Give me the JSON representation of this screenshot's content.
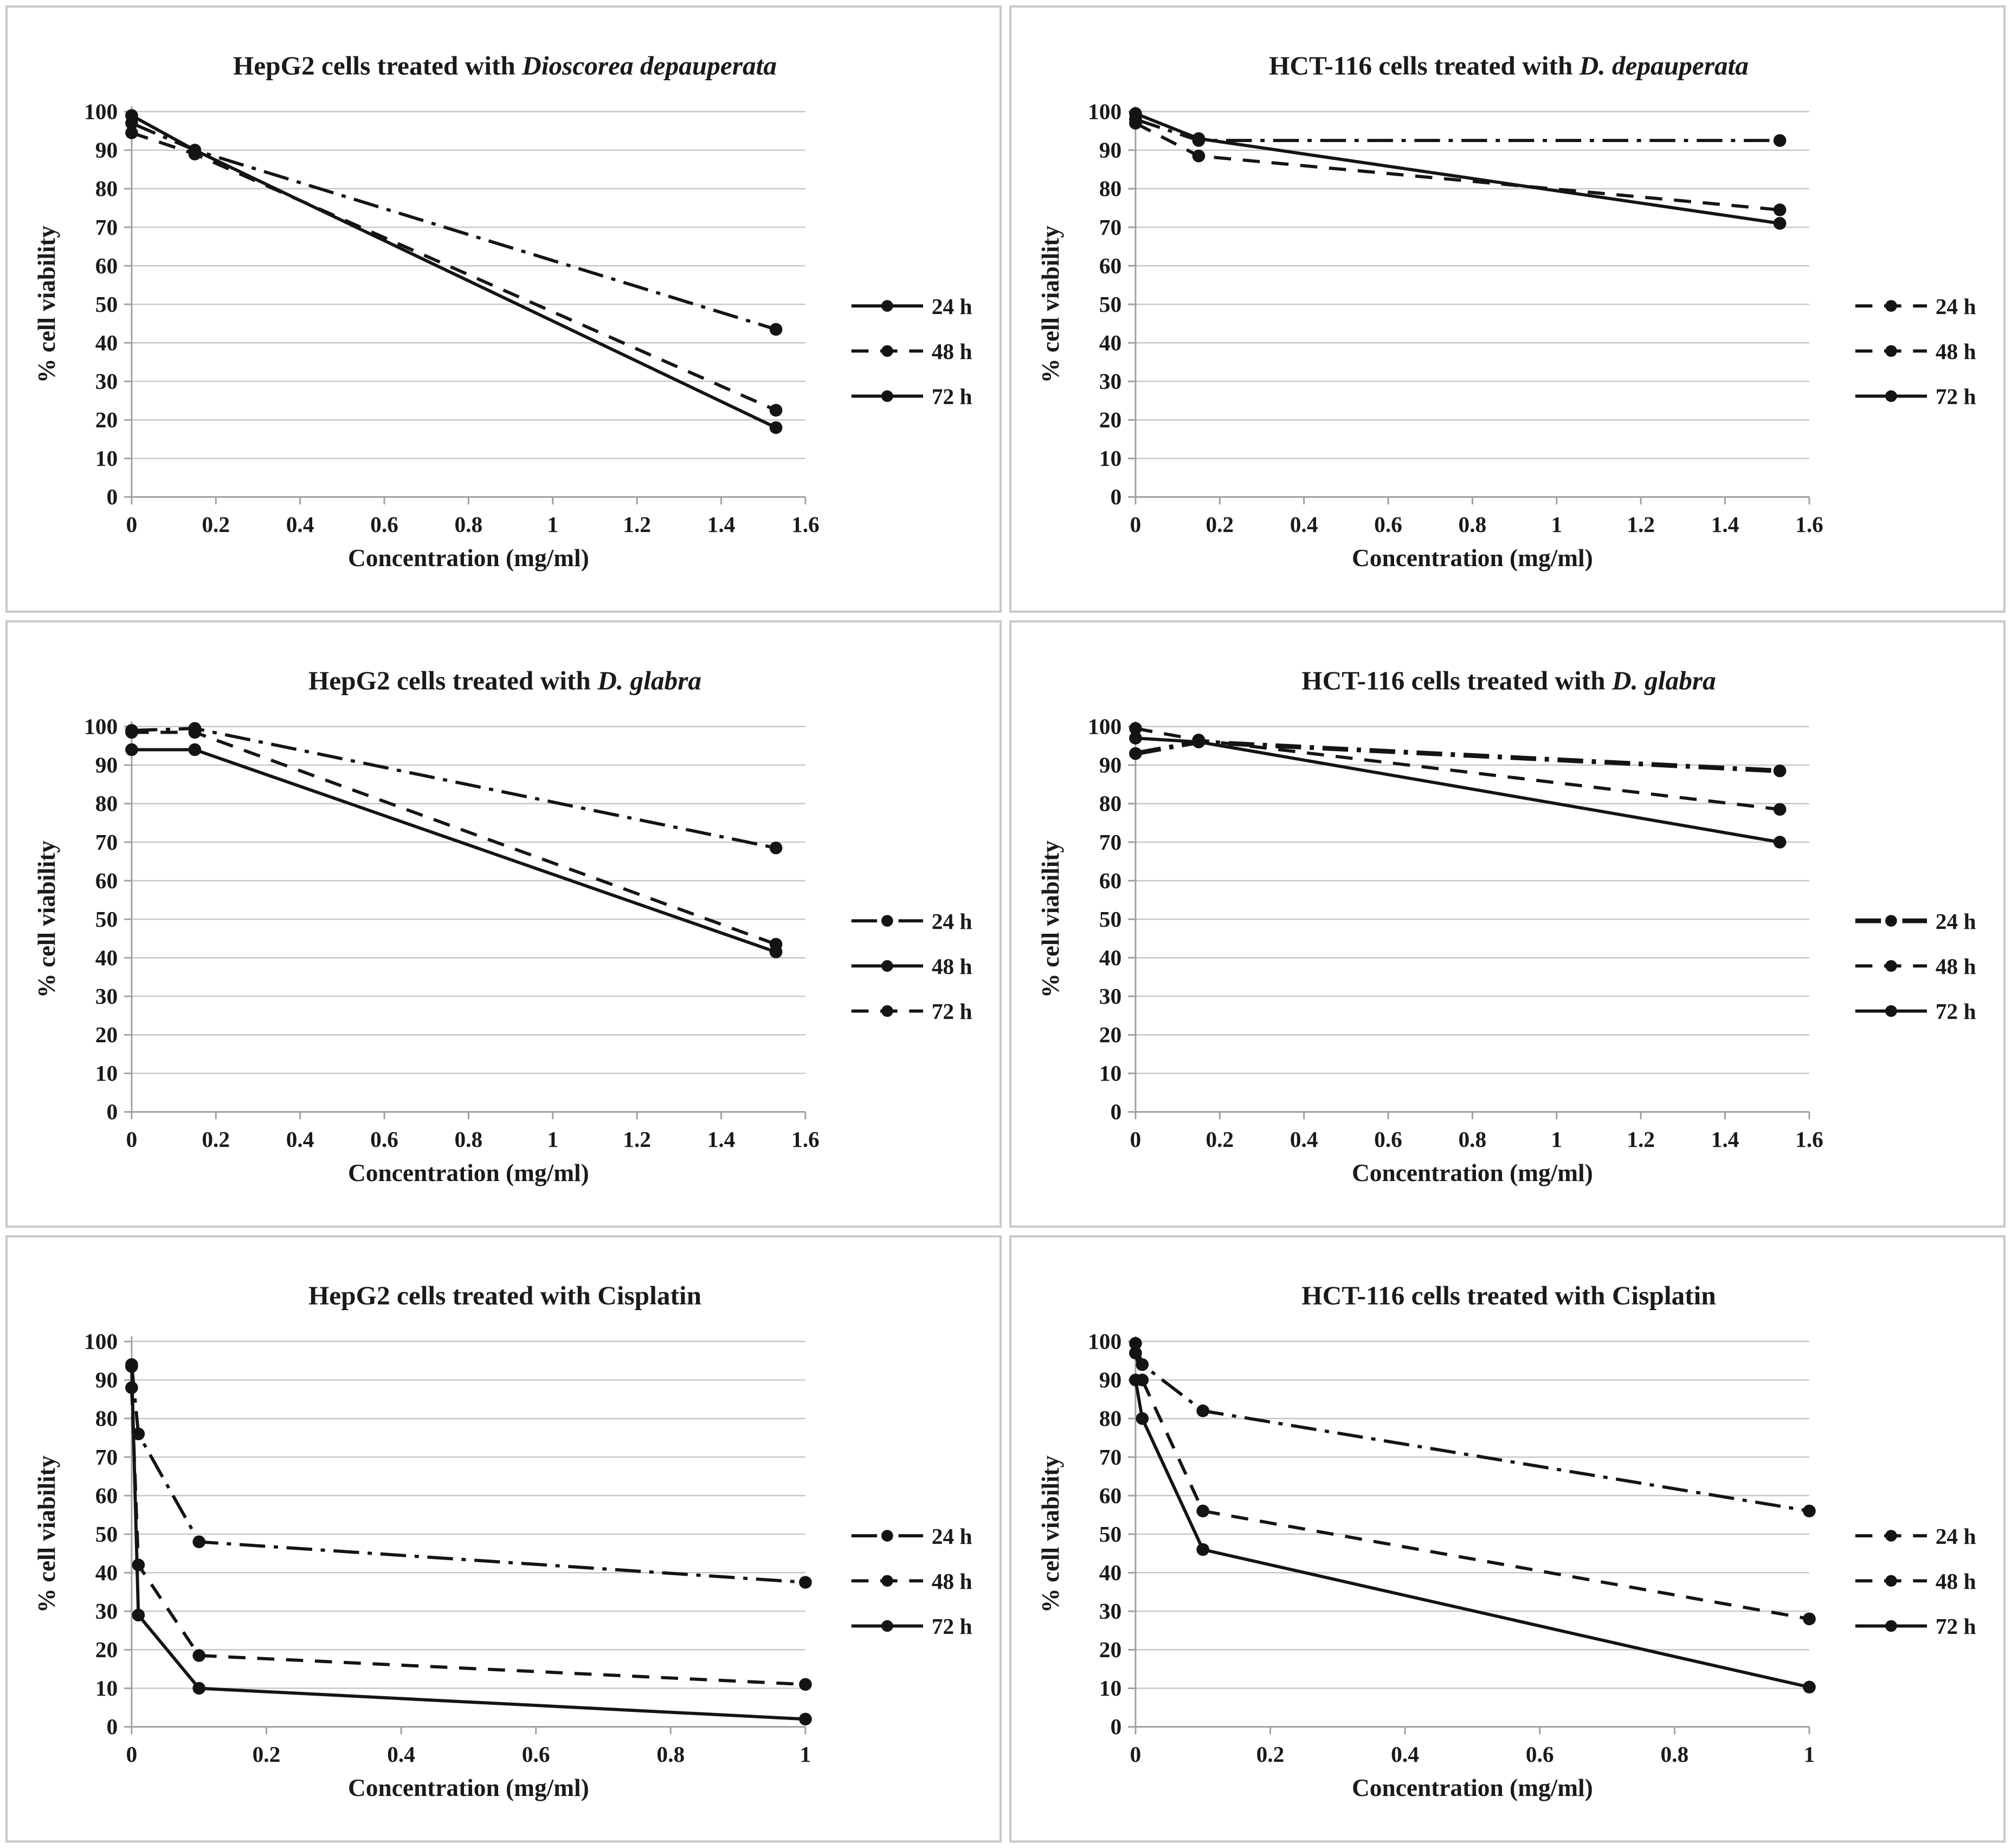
{
  "style": {
    "line_color": "#141414",
    "grid_color": "#c6c6c6",
    "axis_color": "#a0a0a0",
    "text_color": "#1a1a1a",
    "panel_border_color": "#c9c9c9",
    "background_color": "#ffffff"
  },
  "chart_data": [
    {
      "type": "line",
      "title_parts": [
        {
          "text": "HepG2 cells treated with ",
          "italic": false
        },
        {
          "text": "Dioscorea depauperata",
          "italic": true
        }
      ],
      "xlabel": "Concentration (mg/ml)",
      "ylabel": "% cell viability",
      "xlim": [
        0,
        1.6
      ],
      "ylim": [
        0,
        100
      ],
      "xticks": [
        0,
        0.2,
        0.4,
        0.6,
        0.8,
        1,
        1.2,
        1.4,
        1.6
      ],
      "yticks": [
        0,
        10,
        20,
        30,
        40,
        50,
        60,
        70,
        80,
        90,
        100
      ],
      "grid": "horizontal",
      "legend_position": "right",
      "series": [
        {
          "name": "24 h",
          "style": "dashdot",
          "legend_style": "solid",
          "marker": "circle",
          "x": [
            0,
            0.15,
            1.53
          ],
          "y": [
            97,
            90,
            43.5
          ]
        },
        {
          "name": "48 h",
          "style": "dashed",
          "legend_style": "dashed",
          "marker": "circle",
          "x": [
            0,
            0.15,
            1.53
          ],
          "y": [
            94.5,
            89,
            22.5
          ]
        },
        {
          "name": "72 h",
          "style": "solid",
          "legend_style": "solid",
          "marker": "circle",
          "x": [
            0,
            0.15,
            1.53
          ],
          "y": [
            99,
            90,
            18
          ]
        }
      ]
    },
    {
      "type": "line",
      "title_parts": [
        {
          "text": "HCT-116 cells treated with ",
          "italic": false
        },
        {
          "text": "D. depauperata",
          "italic": true
        }
      ],
      "xlabel": "Concentration (mg/ml)",
      "ylabel": "% cell viability",
      "xlim": [
        0,
        1.6
      ],
      "ylim": [
        0,
        100
      ],
      "xticks": [
        0,
        0.2,
        0.4,
        0.6,
        0.8,
        1,
        1.2,
        1.4,
        1.6
      ],
      "yticks": [
        0,
        10,
        20,
        30,
        40,
        50,
        60,
        70,
        80,
        90,
        100
      ],
      "grid": "horizontal",
      "legend_position": "right",
      "series": [
        {
          "name": "24 h",
          "style": "dashdot",
          "legend_style": "dashed",
          "marker": "circle",
          "x": [
            0,
            0.15,
            1.53
          ],
          "y": [
            98,
            92.5,
            92.5
          ]
        },
        {
          "name": "48 h",
          "style": "dashed",
          "legend_style": "dashed",
          "marker": "circle",
          "x": [
            0,
            0.15,
            1.53
          ],
          "y": [
            97,
            88.5,
            74.5
          ]
        },
        {
          "name": "72 h",
          "style": "solid",
          "legend_style": "solid",
          "marker": "circle",
          "x": [
            0,
            0.15,
            1.53
          ],
          "y": [
            99.5,
            93,
            71
          ]
        }
      ]
    },
    {
      "type": "line",
      "title_parts": [
        {
          "text": "HepG2 cells treated with ",
          "italic": false
        },
        {
          "text": "D. glabra",
          "italic": true
        }
      ],
      "xlabel": "Concentration (mg/ml)",
      "ylabel": "% cell viability",
      "xlim": [
        0,
        1.6
      ],
      "ylim": [
        0,
        100
      ],
      "xticks": [
        0,
        0.2,
        0.4,
        0.6,
        0.8,
        1,
        1.2,
        1.4,
        1.6
      ],
      "yticks": [
        0,
        10,
        20,
        30,
        40,
        50,
        60,
        70,
        80,
        90,
        100
      ],
      "grid": "horizontal",
      "legend_position": "right",
      "series": [
        {
          "name": "24 h",
          "style": "dashdot",
          "legend_style": "dashdot",
          "marker": "circle",
          "x": [
            0,
            0.15,
            1.53
          ],
          "y": [
            99,
            99.5,
            68.5
          ]
        },
        {
          "name": "48 h",
          "style": "solid",
          "legend_style": "solid",
          "marker": "circle",
          "x": [
            0,
            0.15,
            1.53
          ],
          "y": [
            94,
            94,
            41.5
          ]
        },
        {
          "name": "72 h",
          "style": "dashed",
          "legend_style": "dashed",
          "marker": "circle",
          "x": [
            0,
            0.15,
            1.53
          ],
          "y": [
            98.5,
            98.5,
            43.5
          ]
        }
      ]
    },
    {
      "type": "line",
      "title_parts": [
        {
          "text": "HCT-116 cells treated with ",
          "italic": false
        },
        {
          "text": "D. glabra",
          "italic": true
        }
      ],
      "xlabel": "Concentration (mg/ml)",
      "ylabel": "% cell viability",
      "xlim": [
        0,
        1.6
      ],
      "ylim": [
        0,
        100
      ],
      "xticks": [
        0,
        0.2,
        0.4,
        0.6,
        0.8,
        1,
        1.2,
        1.4,
        1.6
      ],
      "yticks": [
        0,
        10,
        20,
        30,
        40,
        50,
        60,
        70,
        80,
        90,
        100
      ],
      "grid": "horizontal",
      "legend_position": "right",
      "series": [
        {
          "name": "24 h",
          "style": "dashdot",
          "legend_style": "dashdot",
          "marker": "circle",
          "width": 9,
          "x": [
            0,
            0.15,
            1.53
          ],
          "y": [
            93,
            96,
            88.5
          ]
        },
        {
          "name": "48 h",
          "style": "dashed",
          "legend_style": "dashed",
          "marker": "circle",
          "x": [
            0,
            0.15,
            1.53
          ],
          "y": [
            99.5,
            96.5,
            78.5
          ]
        },
        {
          "name": "72 h",
          "style": "solid",
          "legend_style": "solid",
          "marker": "circle",
          "x": [
            0,
            0.15,
            1.53
          ],
          "y": [
            97,
            96,
            70
          ]
        }
      ]
    },
    {
      "type": "line",
      "title_parts": [
        {
          "text": "HepG2 cells treated with Cisplatin",
          "italic": false
        }
      ],
      "xlabel": "Concentration (mg/ml)",
      "ylabel": "% cell viability",
      "xlim": [
        0,
        1
      ],
      "ylim": [
        0,
        100
      ],
      "xticks": [
        0,
        0.2,
        0.4,
        0.6,
        0.8,
        1
      ],
      "yticks": [
        0,
        10,
        20,
        30,
        40,
        50,
        60,
        70,
        80,
        90,
        100
      ],
      "grid": "horizontal",
      "legend_position": "right",
      "series": [
        {
          "name": "24 h",
          "style": "dashdot",
          "legend_style": "dashdot",
          "marker": "circle",
          "x": [
            0,
            0.01,
            0.1,
            1
          ],
          "y": [
            94,
            76,
            48,
            37.5
          ]
        },
        {
          "name": "48 h",
          "style": "dashed",
          "legend_style": "dashed",
          "marker": "circle",
          "x": [
            0,
            0.01,
            0.1,
            1
          ],
          "y": [
            88,
            42,
            18.5,
            11
          ]
        },
        {
          "name": "72 h",
          "style": "solid",
          "legend_style": "solid",
          "marker": "circle",
          "x": [
            0,
            0.01,
            0.1,
            1
          ],
          "y": [
            93.5,
            29,
            10,
            2
          ]
        }
      ]
    },
    {
      "type": "line",
      "title_parts": [
        {
          "text": "HCT-116 cells treated with Cisplatin",
          "italic": false
        }
      ],
      "xlabel": "Concentration (mg/ml)",
      "ylabel": "% cell viability",
      "xlim": [
        0,
        1
      ],
      "ylim": [
        0,
        100
      ],
      "xticks": [
        0,
        0.2,
        0.4,
        0.6,
        0.8,
        1
      ],
      "yticks": [
        0,
        10,
        20,
        30,
        40,
        50,
        60,
        70,
        80,
        90,
        100
      ],
      "grid": "horizontal",
      "legend_position": "right",
      "series": [
        {
          "name": "24 h",
          "style": "dashdot",
          "legend_style": "dashed",
          "marker": "circle",
          "x": [
            0,
            0.01,
            0.1,
            1
          ],
          "y": [
            99.5,
            94,
            82,
            56
          ]
        },
        {
          "name": "48 h",
          "style": "dashed",
          "legend_style": "dashed",
          "marker": "circle",
          "x": [
            0,
            0.01,
            0.1,
            1
          ],
          "y": [
            97,
            90,
            56,
            28
          ]
        },
        {
          "name": "72 h",
          "style": "solid",
          "legend_style": "solid",
          "marker": "circle",
          "x": [
            0,
            0.01,
            0.1,
            1
          ],
          "y": [
            90,
            80,
            46,
            10.3
          ]
        }
      ]
    }
  ]
}
